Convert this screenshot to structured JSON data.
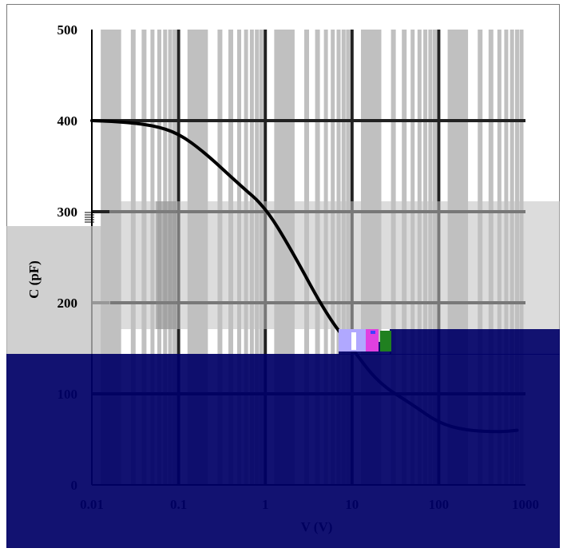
{
  "chart_data": {
    "type": "line",
    "title": "",
    "xlabel": "V (V)",
    "ylabel": "C (pF)",
    "x_scale": "log",
    "xlim": [
      0.01,
      1000
    ],
    "ylim": [
      0,
      500
    ],
    "grid": true,
    "x_ticks": [
      {
        "value": 0.01,
        "label": "0.01"
      },
      {
        "value": 0.1,
        "label": "0.1"
      },
      {
        "value": 1,
        "label": "1"
      },
      {
        "value": 10,
        "label": "10"
      },
      {
        "value": 100,
        "label": "100"
      },
      {
        "value": 1000,
        "label": "1000"
      }
    ],
    "y_ticks": [
      {
        "value": 0,
        "label": "0"
      },
      {
        "value": 100,
        "label": "100"
      },
      {
        "value": 200,
        "label": "200"
      },
      {
        "value": 300,
        "label": "300"
      },
      {
        "value": 400,
        "label": "400"
      },
      {
        "value": 500,
        "label": "500"
      }
    ],
    "series": [
      {
        "color": "#000000",
        "x": [
          0.01,
          0.02,
          0.05,
          0.1,
          0.2,
          0.5,
          1,
          2,
          5,
          10,
          20,
          50,
          100,
          200,
          500,
          800
        ],
        "values": [
          400,
          399,
          395,
          386,
          365,
          330,
          305,
          258,
          188,
          150,
          112,
          88,
          68,
          60,
          58,
          60
        ]
      }
    ]
  },
  "colors": {
    "navy_overlay": "#000066",
    "gray_band": "#c0c0c0",
    "dark_gray_band": "#808080",
    "grid_major": "#222222",
    "accent_lavender": "#b0a8ff",
    "accent_magenta": "#e040e0",
    "accent_green": "#208020"
  }
}
